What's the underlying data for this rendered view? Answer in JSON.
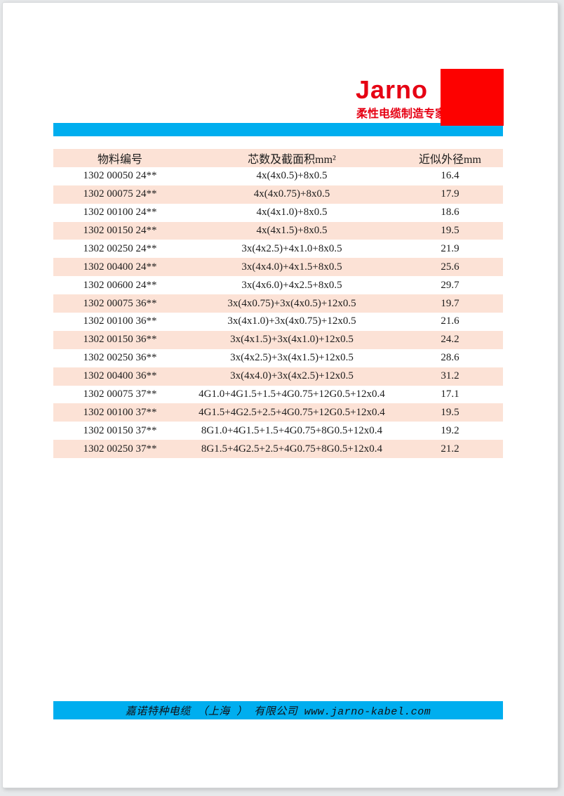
{
  "logo": {
    "brand": "Jarno",
    "tagline": "柔性电缆制造专家"
  },
  "colors": {
    "brand_red": "#e60013",
    "logo_block_red": "#fd0100",
    "accent_cyan": "#00aeef",
    "row_pink": "#fce2d6"
  },
  "table": {
    "columns": [
      "物料编号",
      "芯数及截面积mm²",
      "近似外径mm"
    ],
    "rows": [
      [
        "1302 00050 24**",
        "4x(4x0.5)+8x0.5",
        "16.4"
      ],
      [
        "1302 00075 24**",
        "4x(4x0.75)+8x0.5",
        "17.9"
      ],
      [
        "1302 00100 24**",
        "4x(4x1.0)+8x0.5",
        "18.6"
      ],
      [
        "1302 00150 24**",
        "4x(4x1.5)+8x0.5",
        "19.5"
      ],
      [
        "1302 00250 24**",
        "3x(4x2.5)+4x1.0+8x0.5",
        "21.9"
      ],
      [
        "1302 00400 24**",
        "3x(4x4.0)+4x1.5+8x0.5",
        "25.6"
      ],
      [
        "1302 00600 24**",
        "3x(4x6.0)+4x2.5+8x0.5",
        "29.7"
      ],
      [
        "1302 00075 36**",
        "3x(4x0.75)+3x(4x0.5)+12x0.5",
        "19.7"
      ],
      [
        "1302 00100 36**",
        "3x(4x1.0)+3x(4x0.75)+12x0.5",
        "21.6"
      ],
      [
        "1302 00150 36**",
        "3x(4x1.5)+3x(4x1.0)+12x0.5",
        "24.2"
      ],
      [
        "1302 00250 36**",
        "3x(4x2.5)+3x(4x1.5)+12x0.5",
        "28.6"
      ],
      [
        "1302 00400 36**",
        "3x(4x4.0)+3x(4x2.5)+12x0.5",
        "31.2"
      ],
      [
        "1302 00075 37**",
        "4G1.0+4G1.5+1.5+4G0.75+12G0.5+12x0.4",
        "17.1"
      ],
      [
        "1302 00100 37**",
        "4G1.5+4G2.5+2.5+4G0.75+12G0.5+12x0.4",
        "19.5"
      ],
      [
        "1302 00150 37**",
        "8G1.0+4G1.5+1.5+4G0.75+8G0.5+12x0.4",
        "19.2"
      ],
      [
        "1302 00250 37**",
        "8G1.5+4G2.5+2.5+4G0.75+8G0.5+12x0.4",
        "21.2"
      ]
    ]
  },
  "footer": {
    "text": "嘉诺特种电缆 （上海 ） 有限公司 www.jarno-kabel.com"
  }
}
